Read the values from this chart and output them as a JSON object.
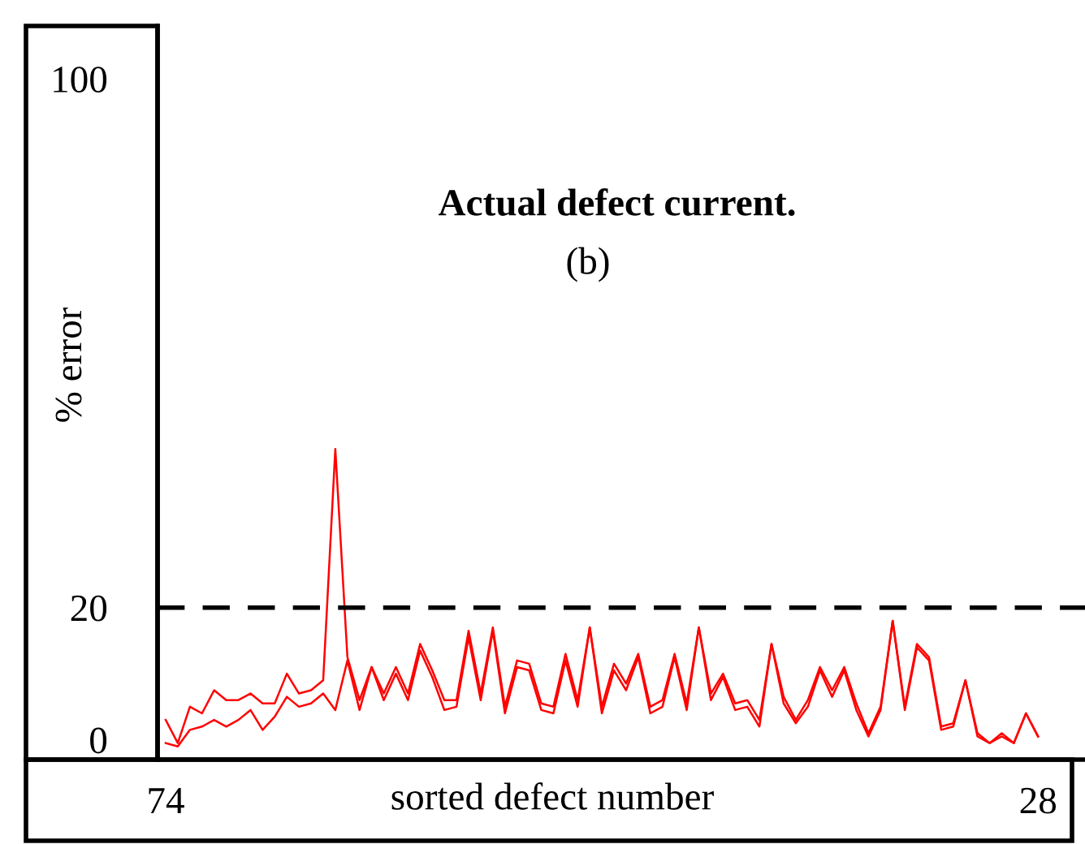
{
  "chart_data": {
    "type": "line",
    "title": "Actual defect current.",
    "subtitle": "(b)",
    "xlabel": "sorted defect number",
    "ylabel": "% error",
    "categories": [
      "74",
      null,
      null,
      null,
      null,
      null,
      null,
      null,
      null,
      null,
      null,
      null,
      null,
      null,
      null,
      null,
      null,
      null,
      null,
      null,
      null,
      null,
      null,
      null,
      null,
      null,
      null,
      null,
      null,
      null,
      null,
      null,
      null,
      null,
      null,
      null,
      null,
      null,
      null,
      null,
      null,
      null,
      null,
      null,
      null,
      null,
      null,
      null,
      null,
      null,
      null,
      null,
      null,
      null,
      null,
      null,
      null,
      null,
      null,
      null,
      null,
      null,
      null,
      null,
      null,
      null,
      null,
      null,
      null,
      null,
      null,
      null,
      "28"
    ],
    "series": [
      {
        "color": "#ff0000",
        "values": [
          -0.5,
          -1,
          1.5,
          2,
          3,
          2,
          3,
          4.5,
          1.5,
          3.5,
          6.5,
          5,
          5.5,
          7,
          4.5,
          12,
          4.5,
          11,
          6,
          10,
          6,
          13.5,
          9.5,
          4.5,
          5,
          15.5,
          6,
          16.5,
          4,
          11,
          10.5,
          4.5,
          4,
          12,
          5,
          17,
          4,
          10.5,
          7.5,
          12.5,
          4,
          5,
          12.5,
          4.5,
          17,
          6,
          9.5,
          4.5,
          5,
          2,
          14.5,
          5.5,
          2.5,
          5,
          10.5,
          6.5,
          10.5,
          4.5,
          0.5,
          4.5,
          18,
          4.5,
          14,
          12,
          1.5,
          2,
          9,
          0.5,
          -0.5,
          0.5,
          -0.5,
          4,
          0.5
        ]
      },
      {
        "color": "#ff0000",
        "values": [
          3,
          -0.5,
          5,
          4,
          7.5,
          6,
          6,
          7,
          5.5,
          5.5,
          10,
          7,
          7.5,
          9,
          44,
          12.5,
          6,
          11,
          7,
          11,
          7,
          14.5,
          10.5,
          6,
          6,
          16.5,
          7,
          17,
          5,
          12,
          11.5,
          5.5,
          5,
          13,
          6,
          17,
          5,
          11.5,
          8.5,
          13,
          5,
          6,
          13,
          5.5,
          17,
          7,
          10,
          5.5,
          6,
          3,
          14.5,
          6.5,
          3,
          6,
          11,
          7.5,
          11,
          5.5,
          1,
          5,
          18,
          5,
          14.5,
          12.5,
          2,
          2.5,
          9,
          1,
          -0.5,
          1,
          -0.5,
          4,
          0.5
        ]
      }
    ],
    "ylim": [
      -3,
      108
    ],
    "yticks": [
      0,
      20,
      100
    ],
    "ref_lines": [
      {
        "axis": "y",
        "value": 20,
        "color": "#000000",
        "line_style": "dashed"
      }
    ]
  }
}
